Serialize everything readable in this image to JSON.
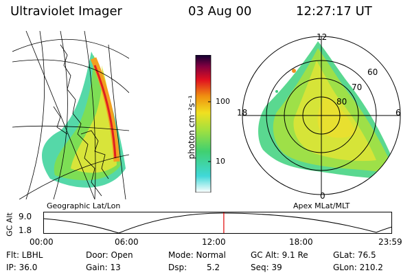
{
  "header": {
    "instrument": "Ultraviolet Imager",
    "date": "03 Aug 00",
    "time": "12:27:17 UT"
  },
  "left_panel": {
    "label": "Geographic Lat/Lon"
  },
  "right_panel": {
    "label": "Apex MLat/MLT",
    "mlt_labels": {
      "top": "12",
      "left": "18",
      "right": "6",
      "bottom": "0"
    },
    "lat_labels": [
      "60",
      "70",
      "80"
    ]
  },
  "colorbar": {
    "unit_label": "photon cm⁻²s⁻¹",
    "ticks": [
      "100",
      "10"
    ]
  },
  "altitude_plot": {
    "ylabel": "GC Alt",
    "y_ticks": [
      "9.0",
      "1.8"
    ],
    "x_ticks": [
      "00:00",
      "06:00",
      "12:00",
      "18:00",
      "23:59"
    ],
    "current_fraction": 0.5186,
    "marker_color": "#e00000"
  },
  "info": {
    "flt": "Flt: LBHL",
    "ip": "IP: 36.0",
    "door": "Door: Open",
    "gain": "Gain: 13",
    "mode": "Mode: Normal",
    "dsp_label": "Dsp:",
    "dsp_value": "5.2",
    "gc_alt": "GC Alt: 9.1 Re",
    "seq": "Seq: 39",
    "glat": "GLat: 76.5",
    "glon": "GLon: 210.2"
  }
}
